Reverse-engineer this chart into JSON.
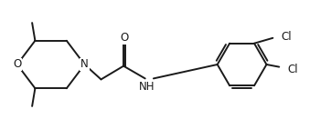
{
  "line_color": "#1a1a1a",
  "bg_color": "#ffffff",
  "line_width": 1.4,
  "font_size": 8.5,
  "figsize": [
    3.62,
    1.42
  ],
  "dpi": 100,
  "xlim": [
    0,
    11
  ],
  "ylim": [
    0,
    4.2
  ]
}
